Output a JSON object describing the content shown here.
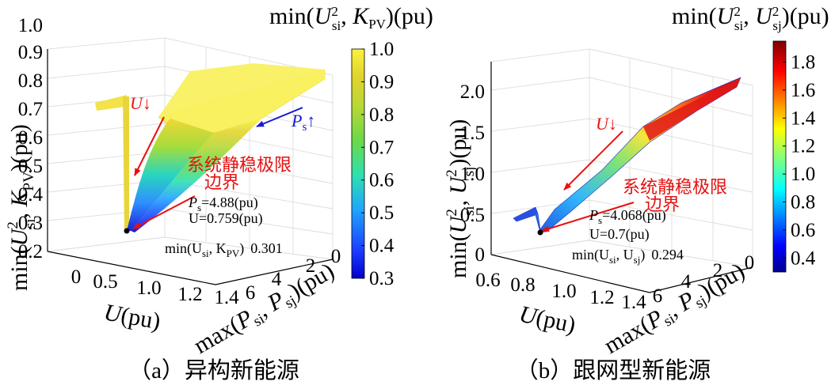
{
  "chart_data": [
    {
      "id": "a",
      "type": "surface3d",
      "caption": "（a）异构新能源",
      "zlabel": "min(U_si^2, K_PV)(pu)",
      "xlabel": "U(pu)",
      "ylabel": "max(P_si, P_sj)(pu)",
      "colorbar_title": "min(U_si^2, K_PV)(pu)",
      "x_ticks": [
        "0",
        "0.5",
        "1.0",
        "1.2",
        "1.4"
      ],
      "y_ticks": [
        "0",
        "2",
        "4",
        "6"
      ],
      "z_ticks": [
        "0.2",
        "0.3",
        "0.4",
        "0.5",
        "0.6",
        "0.7",
        "0.8",
        "0.9",
        "1.0"
      ],
      "colorbar": {
        "min": 0.3,
        "max": 1.0,
        "ticks": [
          "0.3",
          "0.4",
          "0.5",
          "0.6",
          "0.7",
          "0.8",
          "0.9",
          "1.0"
        ],
        "colormap": "jet"
      },
      "surface_z_range": [
        0.301,
        1.0
      ],
      "annotations": {
        "u_down": "U↓",
        "ps_up": "P",
        "ps_up_sub": "s",
        "ps_up_arrow": "↑",
        "limit_line1": "系统静稳极限",
        "limit_line2": "边界",
        "ps_value": "P",
        "ps_value_sub": "s",
        "ps_value_rest": "=4.88(pu)",
        "u_value": "U=0.759(pu)",
        "min_label": "min(U",
        "min_label_sub": "si",
        "min_label_rest": ", K",
        "min_label_sub2": "PV",
        "min_label_close": ")",
        "min_value": "0.301"
      },
      "critical_point": {
        "Ps": 4.88,
        "U": 0.759,
        "min": 0.301
      }
    },
    {
      "id": "b",
      "type": "surface3d",
      "caption": "（b）跟网型新能源",
      "zlabel": "min(U_si^2, U_sj^2)(pu)",
      "xlabel": "U(pu)",
      "ylabel": "max(P_si, P_sj)(pu)",
      "colorbar_title": "min(U_si^2, U_sj^2)(pu)",
      "x_ticks": [
        "0.6",
        "0.8",
        "1.0",
        "1.2",
        "1.4"
      ],
      "y_ticks": [
        "0",
        "2",
        "4",
        "6"
      ],
      "z_ticks": [
        "0",
        "0.5",
        "1.0",
        "1.5",
        "2.0"
      ],
      "colorbar": {
        "min": 0.3,
        "max": 1.95,
        "ticks": [
          "0.4",
          "0.6",
          "0.8",
          "1.0",
          "1.2",
          "1.4",
          "1.6",
          "1.8"
        ],
        "colormap": "jet"
      },
      "surface_z_range": [
        0.294,
        1.95
      ],
      "annotations": {
        "u_down": "U↓",
        "limit_line1": "系统静稳极限",
        "limit_line2": "边界",
        "ps_value": "P",
        "ps_value_sub": "s",
        "ps_value_rest": "=4.068(pu)",
        "u_value": "U=0.7(pu)",
        "min_label": "min(U",
        "min_label_sub": "si",
        "min_label_rest": ", U",
        "min_label_sub2": "sj",
        "min_label_close": ")",
        "min_value": "0.294"
      },
      "critical_point": {
        "Ps": 4.068,
        "U": 0.7,
        "min": 0.294
      }
    }
  ]
}
